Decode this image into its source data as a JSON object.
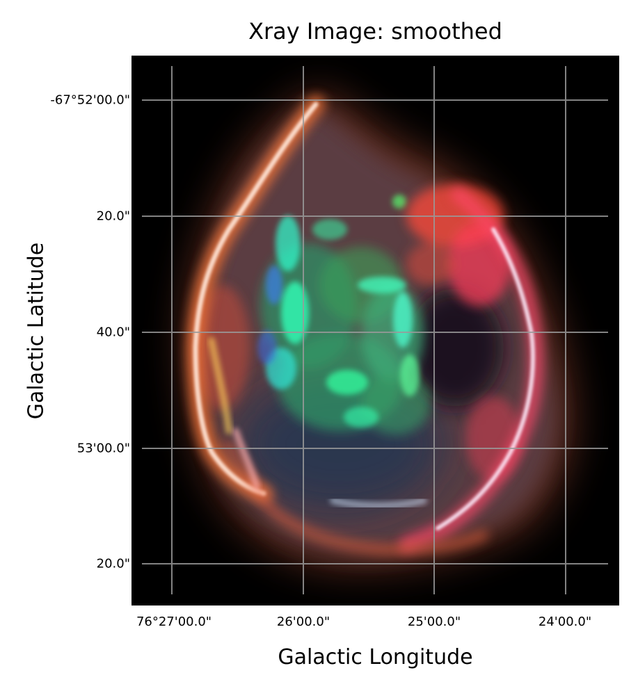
{
  "figure": {
    "title": "Xray Image: smoothed",
    "xlabel": "Galactic Longitude",
    "ylabel": "Galactic Latitude",
    "x_ticks": [
      "76°27'00.0\"",
      "26'00.0\"",
      "25'00.0\"",
      "24'00.0\""
    ],
    "y_ticks": [
      "-67°52'00.0\"",
      "20.0\"",
      "40.0\"",
      "53'00.0\"",
      "20.0\""
    ],
    "grid": true,
    "colors": {
      "background": "#000000",
      "grid_line": "#9a9a9a",
      "shell_outer": "#ff6a3a",
      "shell_highlight": "#ffe9e0",
      "interior_green": "#3dff8e",
      "interior_cyan": "#2fffd0",
      "interior_blue": "#2a62c9",
      "east_red": "#ff3c3c"
    }
  }
}
